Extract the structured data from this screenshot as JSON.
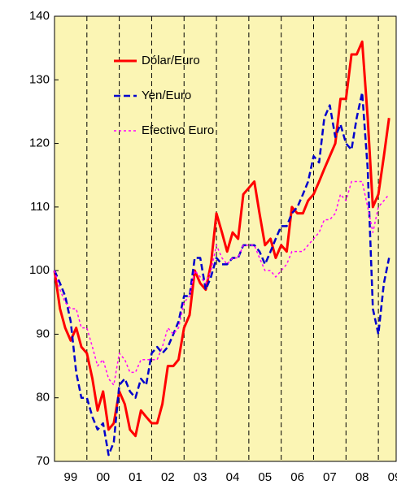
{
  "chart_data": {
    "type": "line",
    "x": [
      1999,
      1999.17,
      1999.33,
      1999.5,
      1999.67,
      1999.83,
      2000,
      2000.17,
      2000.33,
      2000.5,
      2000.67,
      2000.83,
      2001,
      2001.17,
      2001.33,
      2001.5,
      2001.67,
      2001.83,
      2002,
      2002.17,
      2002.33,
      2002.5,
      2002.67,
      2002.83,
      2003,
      2003.17,
      2003.33,
      2003.5,
      2003.67,
      2003.83,
      2004,
      2004.17,
      2004.33,
      2004.5,
      2004.67,
      2004.83,
      2005,
      2005.17,
      2005.33,
      2005.5,
      2005.67,
      2005.83,
      2006,
      2006.17,
      2006.33,
      2006.5,
      2006.67,
      2006.83,
      2007,
      2007.17,
      2007.33,
      2007.5,
      2007.67,
      2007.83,
      2008,
      2008.17,
      2008.33,
      2008.5,
      2008.67,
      2008.83,
      2009,
      2009.17,
      2009.33
    ],
    "series": [
      {
        "name": "Dólar/Euro",
        "color": "#ff0000",
        "dash": "solid",
        "values": [
          100,
          94,
          91,
          89,
          91,
          88,
          87,
          83,
          78,
          81,
          75,
          76,
          81,
          79,
          75,
          74,
          78,
          77,
          76,
          76,
          79,
          85,
          85,
          86,
          91,
          93,
          100,
          98,
          97,
          101,
          109,
          106,
          103,
          106,
          105,
          112,
          113,
          114,
          109,
          104,
          105,
          102,
          104,
          103,
          110,
          109,
          109,
          111,
          112,
          114,
          116,
          118,
          120,
          127,
          127,
          134,
          134,
          136,
          124,
          110,
          112,
          118,
          124
        ]
      },
      {
        "name": "Yen/Euro",
        "color": "#0000cc",
        "dash": "dashed",
        "values": [
          100,
          98,
          96,
          92,
          84,
          80,
          80,
          77,
          75,
          76,
          71,
          73,
          82,
          83,
          81,
          80,
          83,
          82,
          87,
          88,
          87,
          88,
          90,
          92,
          96,
          96,
          102,
          102,
          97,
          99,
          102,
          101,
          101,
          102,
          102,
          104,
          104,
          104,
          103,
          101,
          103,
          105,
          107,
          107,
          109,
          110,
          112,
          114,
          118,
          117,
          124,
          126,
          121,
          123,
          120,
          119,
          124,
          128,
          116,
          94,
          90,
          98,
          102
        ]
      },
      {
        "name": "Efectivo Euro",
        "color": "#ff00ff",
        "dash": "dotted",
        "values": [
          100,
          97,
          95,
          94,
          94,
          91,
          91,
          88,
          85,
          86,
          83,
          82,
          87,
          86,
          84,
          84,
          86,
          86,
          86,
          86,
          88,
          91,
          90,
          91,
          95,
          96,
          100,
          99,
          98,
          100,
          104,
          102,
          101,
          102,
          102,
          104,
          104,
          104,
          102,
          100,
          100,
          99,
          100,
          101,
          103,
          103,
          103,
          104,
          105,
          106,
          108,
          108,
          109,
          112,
          111,
          114,
          114,
          114,
          110,
          106,
          110,
          111,
          112
        ]
      }
    ],
    "xlim": [
      1999,
      2009.55
    ],
    "xticks": [
      2000,
      2001,
      2002,
      2003,
      2004,
      2005,
      2006,
      2007,
      2008,
      2009
    ],
    "xlabels": [
      {
        "value": 1999.5,
        "label": "99"
      },
      {
        "value": 2000.5,
        "label": "00"
      },
      {
        "value": 2001.5,
        "label": "01"
      },
      {
        "value": 2002.5,
        "label": "02"
      },
      {
        "value": 2003.5,
        "label": "03"
      },
      {
        "value": 2004.5,
        "label": "04"
      },
      {
        "value": 2005.5,
        "label": "05"
      },
      {
        "value": 2006.5,
        "label": "06"
      },
      {
        "value": 2007.5,
        "label": "07"
      },
      {
        "value": 2008.5,
        "label": "08"
      },
      {
        "value": 2009.5,
        "label": "09"
      }
    ],
    "ylim": [
      70,
      140
    ],
    "yticks": [
      70,
      80,
      90,
      100,
      110,
      120,
      130,
      140
    ],
    "grid": true,
    "legend": "upper left"
  }
}
